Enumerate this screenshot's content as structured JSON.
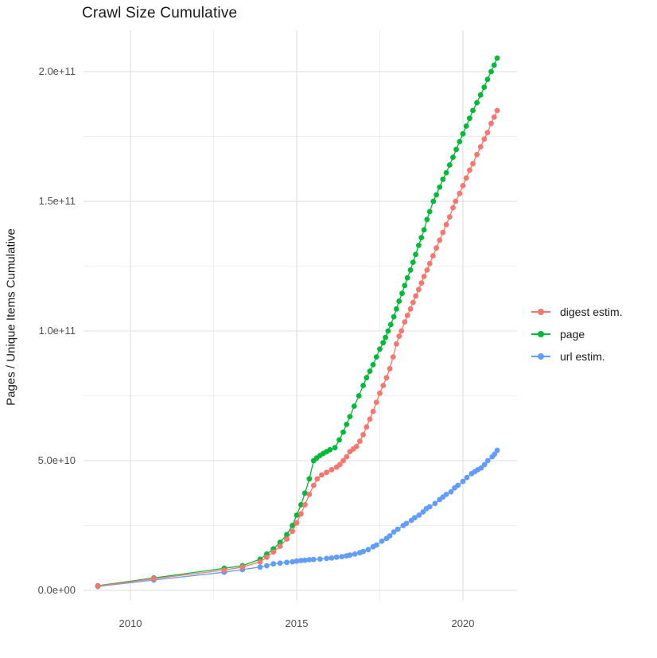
{
  "title": "Crawl Size Cumulative",
  "y_axis": {
    "label": "Pages / Unique Items Cumulative",
    "ticks": [
      {
        "label": "0.0e+00",
        "value": 0
      },
      {
        "label": "5.0e+10",
        "value": 50000000000.0
      },
      {
        "label": "1.0e+11",
        "value": 100000000000.0
      },
      {
        "label": "1.5e+11",
        "value": 150000000000.0
      },
      {
        "label": "2.0e+11",
        "value": 200000000000.0
      }
    ],
    "minor_ticks": [
      25000000000.0,
      75000000000.0,
      125000000000.0,
      175000000000.0
    ]
  },
  "x_axis": {
    "ticks": [
      {
        "label": "2010",
        "value": 2010
      },
      {
        "label": "2015",
        "value": 2015
      },
      {
        "label": "2020",
        "value": 2020
      }
    ],
    "minor_ticks": [
      2012.5,
      2017.5
    ]
  },
  "legend": [
    {
      "label": "digest estim.",
      "color": "#F8766D"
    },
    {
      "label": "page",
      "color": "#00BA38"
    },
    {
      "label": "url estim.",
      "color": "#619CFF"
    }
  ],
  "colors": {
    "grid_major": "#e3e3e3",
    "grid_minor": "#efefef",
    "text": "#4d4d4d"
  },
  "chart_data": {
    "type": "line",
    "title": "Crawl Size Cumulative",
    "xlabel": "",
    "ylabel": "Pages / Unique Items Cumulative",
    "xlim": [
      2008.6,
      2021.6
    ],
    "ylim": [
      0,
      216000000000.0
    ],
    "grid": true,
    "legend_position": "right",
    "marker": "point",
    "series": [
      {
        "name": "page",
        "color": "#00BA38",
        "points": [
          [
            2009.02,
            1800000000.0
          ],
          [
            2010.7,
            4800000000.0
          ],
          [
            2012.82,
            8500000000.0
          ],
          [
            2013.37,
            9500000000.0
          ],
          [
            2013.9,
            12000000000.0
          ],
          [
            2014.1,
            14000000000.0
          ],
          [
            2014.3,
            16000000000.0
          ],
          [
            2014.5,
            18500000000.0
          ],
          [
            2014.7,
            21500000000.0
          ],
          [
            2014.87,
            25000000000.0
          ],
          [
            2015.0,
            29000000000.0
          ],
          [
            2015.13,
            33000000000.0
          ],
          [
            2015.25,
            37500000000.0
          ],
          [
            2015.38,
            43000000000.0
          ],
          [
            2015.51,
            50000000000.0
          ],
          [
            2015.6,
            51000000000.0
          ],
          [
            2015.7,
            52000000000.0
          ],
          [
            2015.8,
            52800000000.0
          ],
          [
            2015.9,
            53500000000.0
          ],
          [
            2016.0,
            54200000000.0
          ],
          [
            2016.15,
            55000000000.0
          ],
          [
            2016.28,
            58000000000.0
          ],
          [
            2016.4,
            61000000000.0
          ],
          [
            2016.5,
            64000000000.0
          ],
          [
            2016.6,
            67000000000.0
          ],
          [
            2016.73,
            71000000000.0
          ],
          [
            2016.87,
            75000000000.0
          ],
          [
            2017.0,
            79000000000.0
          ],
          [
            2017.1,
            82000000000.0
          ],
          [
            2017.2,
            84500000000.0
          ],
          [
            2017.3,
            87000000000.0
          ],
          [
            2017.4,
            90000000000.0
          ],
          [
            2017.5,
            93000000000.0
          ],
          [
            2017.6,
            95500000000.0
          ],
          [
            2017.67,
            97500000000.0
          ],
          [
            2017.75,
            100000000000.0
          ],
          [
            2017.83,
            102500000000.0
          ],
          [
            2017.92,
            105500000000.0
          ],
          [
            2018.0,
            108500000000.0
          ],
          [
            2018.08,
            111500000000.0
          ],
          [
            2018.17,
            114500000000.0
          ],
          [
            2018.25,
            117500000000.0
          ],
          [
            2018.33,
            120500000000.0
          ],
          [
            2018.42,
            123500000000.0
          ],
          [
            2018.5,
            126500000000.0
          ],
          [
            2018.58,
            129500000000.0
          ],
          [
            2018.67,
            133000000000.0
          ],
          [
            2018.75,
            136000000000.0
          ],
          [
            2018.83,
            139000000000.0
          ],
          [
            2018.92,
            143000000000.0
          ],
          [
            2019.0,
            146000000000.0
          ],
          [
            2019.11,
            150000000000.0
          ],
          [
            2019.2,
            152500000000.0
          ],
          [
            2019.3,
            155500000000.0
          ],
          [
            2019.4,
            158500000000.0
          ],
          [
            2019.5,
            161000000000.0
          ],
          [
            2019.6,
            164000000000.0
          ],
          [
            2019.7,
            167000000000.0
          ],
          [
            2019.8,
            170000000000.0
          ],
          [
            2019.9,
            173000000000.0
          ],
          [
            2020.0,
            176000000000.0
          ],
          [
            2020.1,
            179000000000.0
          ],
          [
            2020.2,
            182000000000.0
          ],
          [
            2020.3,
            185000000000.0
          ],
          [
            2020.42,
            188000000000.0
          ],
          [
            2020.53,
            191000000000.0
          ],
          [
            2020.64,
            194000000000.0
          ],
          [
            2020.74,
            197000000000.0
          ],
          [
            2020.85,
            200000000000.0
          ],
          [
            2020.94,
            202500000000.0
          ],
          [
            2021.03,
            205200000000.0
          ]
        ]
      },
      {
        "name": "url estim.",
        "color": "#619CFF",
        "points": [
          [
            2009.02,
            1500000000.0
          ],
          [
            2010.7,
            4000000000.0
          ],
          [
            2012.82,
            7000000000.0
          ],
          [
            2013.37,
            8000000000.0
          ],
          [
            2013.9,
            9000000000.0
          ],
          [
            2014.1,
            9500000000.0
          ],
          [
            2014.3,
            10200000000.0
          ],
          [
            2014.5,
            10500000000.0
          ],
          [
            2014.7,
            10800000000.0
          ],
          [
            2014.87,
            11000000000.0
          ],
          [
            2015.0,
            11300000000.0
          ],
          [
            2015.13,
            11500000000.0
          ],
          [
            2015.25,
            11600000000.0
          ],
          [
            2015.38,
            11800000000.0
          ],
          [
            2015.51,
            11900000000.0
          ],
          [
            2015.7,
            12100000000.0
          ],
          [
            2015.9,
            12300000000.0
          ],
          [
            2016.05,
            12500000000.0
          ],
          [
            2016.2,
            12800000000.0
          ],
          [
            2016.36,
            13000000000.0
          ],
          [
            2016.5,
            13300000000.0
          ],
          [
            2016.6,
            13600000000.0
          ],
          [
            2016.75,
            14000000000.0
          ],
          [
            2016.9,
            14500000000.0
          ],
          [
            2017.0,
            15000000000.0
          ],
          [
            2017.15,
            15700000000.0
          ],
          [
            2017.3,
            16800000000.0
          ],
          [
            2017.4,
            17500000000.0
          ],
          [
            2017.56,
            19000000000.0
          ],
          [
            2017.7,
            20000000000.0
          ],
          [
            2017.8,
            21000000000.0
          ],
          [
            2017.92,
            22500000000.0
          ],
          [
            2018.04,
            23600000000.0
          ],
          [
            2018.2,
            25000000000.0
          ],
          [
            2018.3,
            25800000000.0
          ],
          [
            2018.45,
            27000000000.0
          ],
          [
            2018.55,
            28000000000.0
          ],
          [
            2018.68,
            29000000000.0
          ],
          [
            2018.8,
            30200000000.0
          ],
          [
            2018.9,
            31500000000.0
          ],
          [
            2019.0,
            32200000000.0
          ],
          [
            2019.16,
            33500000000.0
          ],
          [
            2019.3,
            35000000000.0
          ],
          [
            2019.4,
            36000000000.0
          ],
          [
            2019.5,
            37000000000.0
          ],
          [
            2019.64,
            38000000000.0
          ],
          [
            2019.75,
            39500000000.0
          ],
          [
            2019.85,
            40500000000.0
          ],
          [
            2020.0,
            42000000000.0
          ],
          [
            2020.12,
            43500000000.0
          ],
          [
            2020.26,
            45000000000.0
          ],
          [
            2020.36,
            45800000000.0
          ],
          [
            2020.45,
            46500000000.0
          ],
          [
            2020.55,
            47200000000.0
          ],
          [
            2020.65,
            48500000000.0
          ],
          [
            2020.75,
            50000000000.0
          ],
          [
            2020.88,
            51500000000.0
          ],
          [
            2020.95,
            52500000000.0
          ],
          [
            2021.03,
            54000000000.0
          ]
        ]
      },
      {
        "name": "digest estim.",
        "color": "#F8766D",
        "points": [
          [
            2009.02,
            1700000000.0
          ],
          [
            2010.7,
            4500000000.0
          ],
          [
            2012.82,
            7800000000.0
          ],
          [
            2013.37,
            9000000000.0
          ],
          [
            2013.9,
            11000000000.0
          ],
          [
            2014.1,
            12800000000.0
          ],
          [
            2014.3,
            14800000000.0
          ],
          [
            2014.5,
            17000000000.0
          ],
          [
            2014.7,
            19800000000.0
          ],
          [
            2014.87,
            22800000000.0
          ],
          [
            2015.0,
            26000000000.0
          ],
          [
            2015.13,
            29500000000.0
          ],
          [
            2015.25,
            33000000000.0
          ],
          [
            2015.38,
            37000000000.0
          ],
          [
            2015.51,
            40500000000.0
          ],
          [
            2015.62,
            43000000000.0
          ],
          [
            2015.75,
            44500000000.0
          ],
          [
            2015.9,
            45500000000.0
          ],
          [
            2016.05,
            46500000000.0
          ],
          [
            2016.2,
            47500000000.0
          ],
          [
            2016.3,
            48500000000.0
          ],
          [
            2016.4,
            50000000000.0
          ],
          [
            2016.5,
            51500000000.0
          ],
          [
            2016.6,
            53500000000.0
          ],
          [
            2016.7,
            54500000000.0
          ],
          [
            2016.8,
            55500000000.0
          ],
          [
            2016.9,
            57500000000.0
          ],
          [
            2017.0,
            60000000000.0
          ],
          [
            2017.1,
            63000000000.0
          ],
          [
            2017.2,
            66000000000.0
          ],
          [
            2017.3,
            69000000000.0
          ],
          [
            2017.4,
            72500000000.0
          ],
          [
            2017.5,
            76000000000.0
          ],
          [
            2017.6,
            79000000000.0
          ],
          [
            2017.7,
            82000000000.0
          ],
          [
            2017.8,
            85500000000.0
          ],
          [
            2017.9,
            90000000000.0
          ],
          [
            2018.0,
            95000000000.0
          ],
          [
            2018.08,
            98000000000.0
          ],
          [
            2018.15,
            100000000000.0
          ],
          [
            2018.25,
            103500000000.0
          ],
          [
            2018.33,
            106000000000.0
          ],
          [
            2018.42,
            108500000000.0
          ],
          [
            2018.5,
            111000000000.0
          ],
          [
            2018.58,
            113500000000.0
          ],
          [
            2018.67,
            116000000000.0
          ],
          [
            2018.75,
            118500000000.0
          ],
          [
            2018.83,
            121000000000.0
          ],
          [
            2018.92,
            123500000000.0
          ],
          [
            2019.0,
            126000000000.0
          ],
          [
            2019.1,
            129000000000.0
          ],
          [
            2019.2,
            132000000000.0
          ],
          [
            2019.3,
            135000000000.0
          ],
          [
            2019.4,
            138000000000.0
          ],
          [
            2019.5,
            141000000000.0
          ],
          [
            2019.6,
            144000000000.0
          ],
          [
            2019.7,
            147500000000.0
          ],
          [
            2019.78,
            150000000000.0
          ],
          [
            2019.9,
            153000000000.0
          ],
          [
            2020.0,
            156000000000.0
          ],
          [
            2020.1,
            159000000000.0
          ],
          [
            2020.2,
            162000000000.0
          ],
          [
            2020.3,
            164500000000.0
          ],
          [
            2020.42,
            168000000000.0
          ],
          [
            2020.53,
            171000000000.0
          ],
          [
            2020.64,
            174000000000.0
          ],
          [
            2020.74,
            176500000000.0
          ],
          [
            2020.85,
            180000000000.0
          ],
          [
            2020.94,
            182500000000.0
          ],
          [
            2021.03,
            185000000000.0
          ]
        ]
      }
    ]
  }
}
